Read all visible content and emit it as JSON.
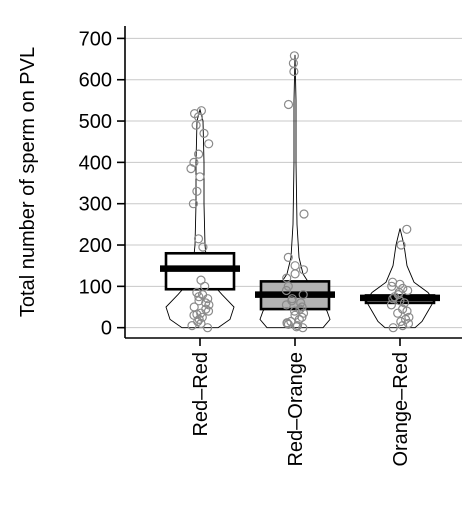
{
  "chart_data": {
    "type": "violin-box",
    "ylabel": "Total number of sperm on PVL",
    "xlabel": "",
    "ylim": [
      -25,
      730
    ],
    "yticks": [
      0,
      100,
      200,
      300,
      400,
      500,
      600,
      700
    ],
    "ytick_labels": [
      "0",
      "100",
      "200",
      "300",
      "400",
      "500",
      "600",
      "700"
    ],
    "grid": true,
    "categories": [
      "Red–Red",
      "Red–Orange",
      "Orange–Red"
    ],
    "groups": [
      {
        "name": "Red–Red",
        "mean": 143,
        "box": {
          "q1": 93,
          "q3": 180
        },
        "box_fill": "#ffffff",
        "violin": [
          [
            0,
            18
          ],
          [
            20,
            30
          ],
          [
            50,
            34
          ],
          [
            80,
            22
          ],
          [
            110,
            11
          ],
          [
            150,
            7
          ],
          [
            200,
            5
          ],
          [
            300,
            4
          ],
          [
            400,
            4
          ],
          [
            500,
            3
          ],
          [
            528,
            0
          ]
        ],
        "points": [
          0,
          5,
          10,
          15,
          20,
          25,
          30,
          32,
          35,
          40,
          45,
          50,
          55,
          60,
          65,
          70,
          75,
          80,
          85,
          100,
          115,
          195,
          215,
          300,
          330,
          365,
          385,
          400,
          420,
          445,
          470,
          490,
          510,
          518,
          525
        ]
      },
      {
        "name": "Red–Orange",
        "mean": 80,
        "box": {
          "q1": 45,
          "q3": 112
        },
        "box_fill": "#b3b3b3",
        "violin": [
          [
            0,
            28
          ],
          [
            20,
            35
          ],
          [
            40,
            32
          ],
          [
            70,
            24
          ],
          [
            100,
            16
          ],
          [
            130,
            8
          ],
          [
            170,
            4
          ],
          [
            250,
            2
          ],
          [
            400,
            1
          ],
          [
            550,
            1
          ],
          [
            660,
            0
          ]
        ],
        "points": [
          0,
          2,
          5,
          8,
          10,
          12,
          15,
          20,
          25,
          30,
          35,
          40,
          45,
          50,
          55,
          60,
          65,
          70,
          80,
          90,
          100,
          120,
          130,
          140,
          150,
          170,
          275,
          540,
          620,
          640,
          658
        ]
      },
      {
        "name": "Orange–Red",
        "mean": 72,
        "box": {
          "q1": 60,
          "q3": 78
        },
        "box_fill": "#b3b3b3",
        "violin": [
          [
            0,
            15
          ],
          [
            15,
            22
          ],
          [
            40,
            28
          ],
          [
            65,
            34
          ],
          [
            85,
            28
          ],
          [
            110,
            14
          ],
          [
            150,
            7
          ],
          [
            200,
            4
          ],
          [
            240,
            0
          ]
        ],
        "points": [
          0,
          5,
          10,
          15,
          20,
          25,
          35,
          40,
          45,
          55,
          60,
          65,
          70,
          75,
          80,
          85,
          90,
          95,
          100,
          105,
          110,
          200,
          238
        ]
      }
    ]
  }
}
